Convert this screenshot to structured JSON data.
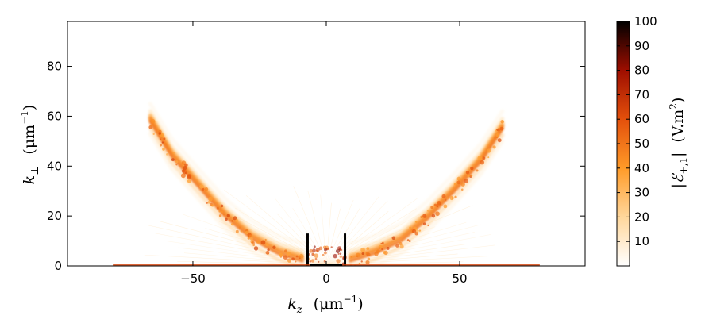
{
  "chart_data": {
    "type": "heatmap",
    "title": "",
    "xlabel": {
      "symbol": "k",
      "sub": "z",
      "unit": "(μm",
      "sup": "−1",
      "close": ")"
    },
    "ylabel": {
      "symbol": "k",
      "sub": "⊥",
      "unit": "(μm",
      "sup": "−1",
      "close": ")"
    },
    "xlim": [
      -97,
      97
    ],
    "ylim": [
      0,
      98
    ],
    "xticks": [
      -50,
      0,
      50
    ],
    "xtick_labels": [
      "−50",
      "0",
      "50"
    ],
    "yticks": [
      0,
      20,
      40,
      60,
      80
    ],
    "ytick_labels": [
      "0",
      "20",
      "40",
      "60",
      "80"
    ],
    "colorbar": {
      "label": {
        "main": "|ℰ",
        "sub": "+,1",
        "close": "|",
        "unit": "(V.m",
        "sup": "2",
        "uclose": ")"
      },
      "range": [
        0,
        100
      ],
      "ticks": [
        10,
        20,
        30,
        40,
        50,
        60,
        70,
        80,
        90,
        100
      ],
      "tick_labels": [
        "10",
        "20",
        "30",
        "40",
        "50",
        "60",
        "70",
        "80",
        "90",
        "100"
      ],
      "colormap": "gist_heat_r",
      "colors": [
        "#ffffff",
        "#ffd79b",
        "#ff9a28",
        "#e4500b",
        "#9e0e00",
        "#000000"
      ]
    },
    "features": [
      {
        "name": "left-arc",
        "points": [
          [
            -66,
            58
          ],
          [
            -58,
            44
          ],
          [
            -48,
            32
          ],
          [
            -38,
            20
          ],
          [
            -28,
            11
          ],
          [
            -18,
            5
          ],
          [
            -9,
            2
          ]
        ]
      },
      {
        "name": "right-arc",
        "points": [
          [
            66,
            55
          ],
          [
            58,
            42
          ],
          [
            48,
            30
          ],
          [
            38,
            19
          ],
          [
            28,
            10
          ],
          [
            18,
            5
          ],
          [
            9,
            2
          ]
        ]
      },
      {
        "name": "left-spike",
        "x": -7,
        "height": 13
      },
      {
        "name": "right-spike",
        "x": 7,
        "height": 13
      },
      {
        "name": "baseline",
        "x_range": [
          -80,
          80
        ]
      }
    ]
  }
}
